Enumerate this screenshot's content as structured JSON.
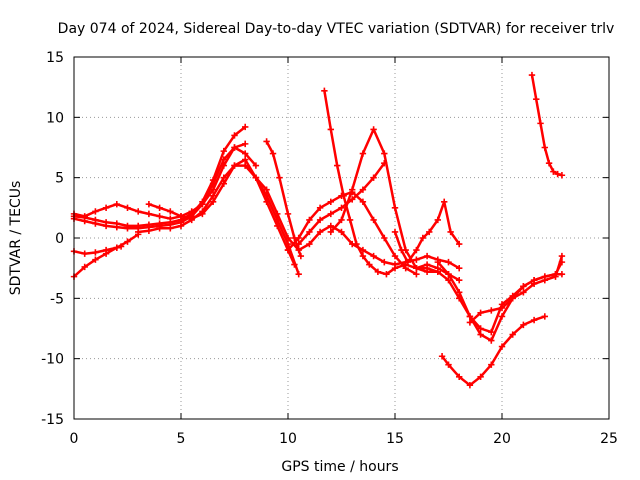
{
  "chart_data": {
    "type": "scatter",
    "title": "Day 074 of 2024, Sidereal Day-to-day VTEC variation (SDTVAR) for receiver trlv",
    "xlabel": "GPS time / hours",
    "ylabel": "SDTVAR / TECUs",
    "xlim": [
      0,
      25
    ],
    "ylim": [
      -15,
      15
    ],
    "x_ticks": [
      0,
      5,
      10,
      15,
      20,
      25
    ],
    "y_ticks": [
      -15,
      -10,
      -5,
      0,
      5,
      10,
      15
    ],
    "grid": true,
    "marker": "plus",
    "color": "#ff0000",
    "series": [
      {
        "x": [
          0.0,
          0.5,
          1.0,
          1.5,
          2.0,
          2.5,
          3.0
        ],
        "y": [
          -3.2,
          -2.4,
          -1.8,
          -1.3,
          -0.8,
          -0.3,
          0.3
        ]
      },
      {
        "x": [
          0.0,
          0.5,
          1.0,
          1.5,
          2.0,
          2.2
        ],
        "y": [
          -1.1,
          -1.3,
          -1.2,
          -1.0,
          -0.8,
          -0.7
        ]
      },
      {
        "x": [
          0.0,
          0.5,
          1.0,
          1.5,
          2.0,
          2.5,
          3.0,
          3.5,
          4.0,
          4.5,
          5.0,
          5.5,
          6.0,
          6.5,
          7.0,
          7.5,
          8.0
        ],
        "y": [
          2.0,
          1.8,
          2.2,
          2.5,
          2.8,
          2.5,
          2.2,
          2.0,
          1.8,
          1.6,
          1.8,
          2.2,
          2.8,
          4.0,
          6.0,
          7.5,
          7.8
        ]
      },
      {
        "x": [
          0.0,
          0.5,
          1.0,
          1.5,
          2.0,
          2.5,
          3.0,
          3.5,
          4.0,
          4.5,
          5.0,
          5.5,
          6.0,
          6.5,
          7.0,
          7.5,
          8.0,
          8.5
        ],
        "y": [
          1.6,
          1.4,
          1.2,
          1.0,
          0.9,
          0.8,
          0.8,
          0.9,
          1.0,
          1.1,
          1.3,
          1.8,
          2.8,
          4.5,
          6.5,
          7.5,
          7.0,
          6.0
        ]
      },
      {
        "x": [
          0.0,
          0.5,
          1.0,
          1.5,
          2.0,
          2.5,
          3.0,
          3.5,
          4.0,
          4.5,
          5.0,
          5.5,
          6.0,
          6.5,
          7.0,
          7.5,
          8.0
        ],
        "y": [
          1.8,
          1.7,
          1.5,
          1.3,
          1.2,
          1.0,
          1.0,
          1.1,
          1.2,
          1.3,
          1.5,
          2.0,
          3.0,
          4.8,
          7.2,
          8.5,
          9.2
        ]
      },
      {
        "x": [
          3.5,
          4.0,
          4.5,
          5.0,
          5.5,
          6.0,
          6.5,
          7.0,
          7.5,
          8.0,
          8.5,
          9.0,
          9.5,
          10.0,
          10.3
        ],
        "y": [
          2.8,
          2.5,
          2.2,
          1.8,
          1.6,
          2.0,
          3.0,
          4.5,
          6.0,
          6.5,
          5.0,
          3.0,
          1.0,
          -1.0,
          -2.2
        ]
      },
      {
        "x": [
          3.0,
          3.5,
          4.0,
          4.5,
          5.0,
          5.5,
          6.0,
          6.5,
          7.0,
          7.5,
          8.0,
          8.5,
          9.0,
          9.5,
          10.0,
          10.5
        ],
        "y": [
          0.5,
          0.6,
          0.8,
          0.8,
          1.0,
          1.5,
          2.2,
          3.5,
          5.0,
          6.0,
          6.0,
          5.0,
          3.5,
          1.5,
          -0.5,
          -3.0
        ]
      },
      {
        "x": [
          9.0,
          9.3,
          9.6,
          10.0,
          10.3,
          10.6
        ],
        "y": [
          8.0,
          7.0,
          5.0,
          2.0,
          0.0,
          -1.5
        ]
      },
      {
        "x": [
          8.0,
          8.5,
          9.0,
          9.5,
          10.0,
          10.5,
          11.0,
          11.5,
          12.0,
          12.5,
          13.0,
          13.5,
          14.0,
          14.5,
          15.0,
          15.5,
          16.0,
          16.5,
          17.0,
          17.5,
          18.0
        ],
        "y": [
          6.0,
          5.0,
          4.0,
          2.0,
          0.0,
          -1.0,
          -0.5,
          0.5,
          1.0,
          0.5,
          -0.5,
          -1.0,
          -1.5,
          -2.0,
          -2.2,
          -2.0,
          -1.8,
          -1.5,
          -1.8,
          -2.0,
          -2.5
        ]
      },
      {
        "x": [
          10.0,
          10.5,
          11.0,
          11.5,
          12.0,
          12.5,
          13.0,
          13.5,
          14.0,
          14.5,
          15.0,
          15.5,
          16.0
        ],
        "y": [
          -1.0,
          0.0,
          1.5,
          2.5,
          3.0,
          3.5,
          3.8,
          3.0,
          1.5,
          0.0,
          -1.5,
          -2.5,
          -3.0
        ]
      },
      {
        "x": [
          10.5,
          11.0,
          11.5,
          12.0,
          12.5,
          13.0,
          13.5,
          14.0,
          14.5
        ],
        "y": [
          -0.5,
          0.5,
          1.5,
          2.0,
          2.5,
          3.2,
          4.0,
          5.0,
          6.2
        ]
      },
      {
        "x": [
          11.7,
          12.0,
          12.3,
          12.6,
          12.9,
          13.2,
          13.5,
          13.8,
          14.2,
          14.6,
          15.0,
          15.5,
          16.0,
          16.5,
          17.0
        ],
        "y": [
          12.2,
          9.0,
          6.0,
          3.5,
          1.5,
          -0.5,
          -1.5,
          -2.2,
          -2.8,
          -3.0,
          -2.5,
          -2.2,
          -2.5,
          -2.8,
          -2.8
        ]
      },
      {
        "x": [
          12.0,
          12.5,
          13.0,
          13.5,
          14.0,
          14.5,
          15.0,
          15.5,
          16.0,
          16.5,
          17.0,
          17.5,
          18.0
        ],
        "y": [
          0.5,
          1.5,
          4.0,
          7.0,
          9.0,
          7.0,
          2.5,
          -1.0,
          -2.5,
          -2.2,
          -2.5,
          -3.0,
          -3.5
        ]
      },
      {
        "x": [
          15.0,
          15.3,
          15.6,
          16.0,
          16.3,
          16.6,
          17.0,
          17.3,
          17.6,
          18.0
        ],
        "y": [
          0.5,
          -1.0,
          -2.0,
          -1.0,
          0.0,
          0.5,
          1.5,
          3.0,
          0.5,
          -0.5
        ]
      },
      {
        "x": [
          16.0,
          16.5,
          17.0,
          17.5,
          18.0,
          18.5,
          19.0,
          19.5,
          20.0,
          20.5,
          21.0,
          21.5,
          22.0,
          22.5,
          22.8
        ],
        "y": [
          -2.5,
          -2.5,
          -2.8,
          -3.5,
          -5.0,
          -6.5,
          -8.0,
          -8.5,
          -6.5,
          -5.0,
          -4.5,
          -3.8,
          -3.5,
          -3.2,
          -1.5
        ]
      },
      {
        "x": [
          17.0,
          17.5,
          18.0,
          18.5,
          19.0,
          19.5,
          20.0,
          20.5,
          21.0,
          21.5,
          22.0,
          22.5,
          22.8
        ],
        "y": [
          -2.0,
          -3.0,
          -4.5,
          -6.5,
          -7.5,
          -7.8,
          -5.5,
          -4.8,
          -4.0,
          -3.5,
          -3.2,
          -3.0,
          -2.0
        ]
      },
      {
        "x": [
          18.5,
          19.0,
          19.5,
          20.0,
          20.5,
          21.0,
          21.5,
          22.0,
          22.5,
          22.8
        ],
        "y": [
          -7.0,
          -6.2,
          -6.0,
          -5.8,
          -5.0,
          -4.0,
          -3.5,
          -3.2,
          -3.0,
          -3.0
        ]
      },
      {
        "x": [
          17.2,
          17.5,
          18.0,
          18.5,
          19.0,
          19.5,
          20.0,
          20.5,
          21.0,
          21.5,
          22.0
        ],
        "y": [
          -9.8,
          -10.5,
          -11.5,
          -12.2,
          -11.5,
          -10.5,
          -9.0,
          -8.0,
          -7.2,
          -6.8,
          -6.5
        ]
      },
      {
        "x": [
          21.4,
          21.6,
          21.8,
          22.0,
          22.2,
          22.4,
          22.6,
          22.8
        ],
        "y": [
          13.5,
          11.5,
          9.5,
          7.5,
          6.2,
          5.5,
          5.3,
          5.2
        ]
      }
    ]
  }
}
